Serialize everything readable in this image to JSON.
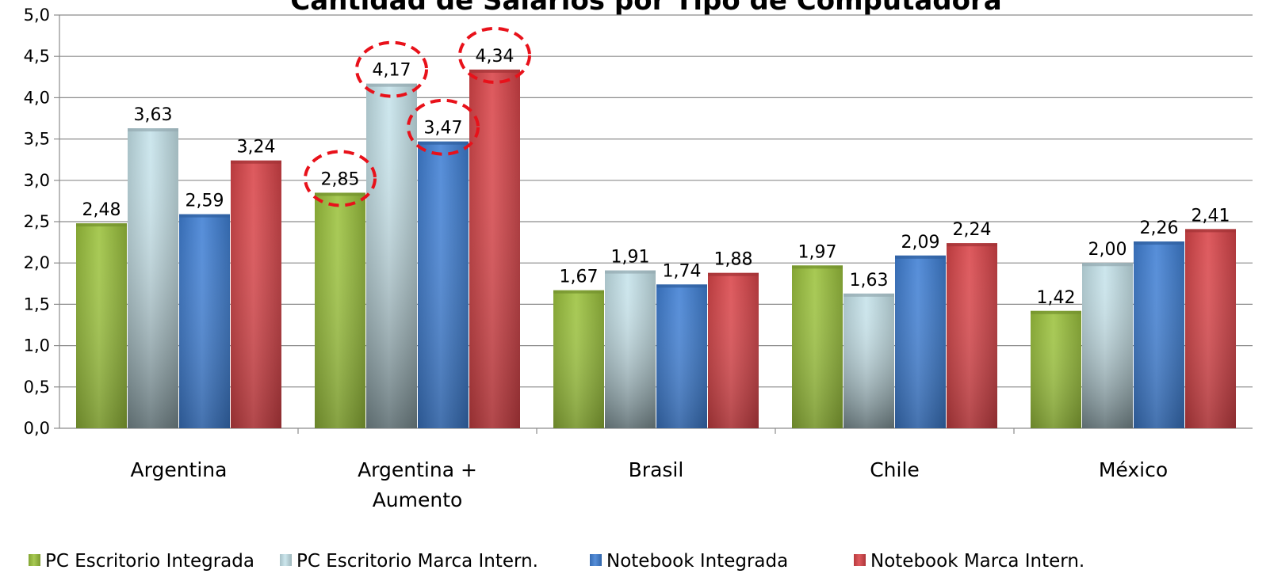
{
  "chart_data": {
    "type": "bar",
    "title": "Cantidad de Salarios por Tipo de Computadora",
    "categories": [
      "Argentina",
      "Argentina + Aumento",
      "Brasil",
      "Chile",
      "México"
    ],
    "category_lines": [
      [
        "Argentina"
      ],
      [
        "Argentina +",
        "Aumento"
      ],
      [
        "Brasil"
      ],
      [
        "Chile"
      ],
      [
        "México"
      ]
    ],
    "series": [
      {
        "name": "PC Escritorio Integrada",
        "values": [
          2.48,
          2.85,
          1.67,
          1.97,
          1.42
        ],
        "labels": [
          "2,48",
          "2,85",
          "1,67",
          "1,97",
          "1,42"
        ],
        "color": "#9bc23c"
      },
      {
        "name": "PC Escritorio Marca Intern.",
        "values": [
          3.63,
          4.17,
          1.91,
          1.63,
          2.0
        ],
        "labels": [
          "3,63",
          "4,17",
          "1,91",
          "1,63",
          "2,00"
        ],
        "color": "#c5e3ea"
      },
      {
        "name": "Notebook Integrada",
        "values": [
          2.59,
          3.47,
          1.74,
          2.09,
          2.26
        ],
        "labels": [
          "2,59",
          "3,47",
          "1,74",
          "2,09",
          "2,26"
        ],
        "color": "#3f7fd4"
      },
      {
        "name": "Notebook Marca Intern.",
        "values": [
          3.24,
          4.34,
          1.88,
          2.24,
          2.41
        ],
        "labels": [
          "3,24",
          "4,34",
          "1,88",
          "2,24",
          "2,41"
        ],
        "color": "#d94448"
      }
    ],
    "ylim": [
      0,
      5
    ],
    "yticks": [
      0,
      0.5,
      1,
      1.5,
      2,
      2.5,
      3,
      3.5,
      4,
      4.5,
      5
    ],
    "ytick_labels": [
      "0,0",
      "0,5",
      "1,0",
      "1,5",
      "2,0",
      "2,5",
      "3,0",
      "3,5",
      "4,0",
      "4,5",
      "5,0"
    ],
    "xlabel": "",
    "ylabel": "",
    "grid": true,
    "legend_position": "bottom",
    "highlighted": "Argentina + Aumento",
    "highlight_color": "#e8111a"
  }
}
